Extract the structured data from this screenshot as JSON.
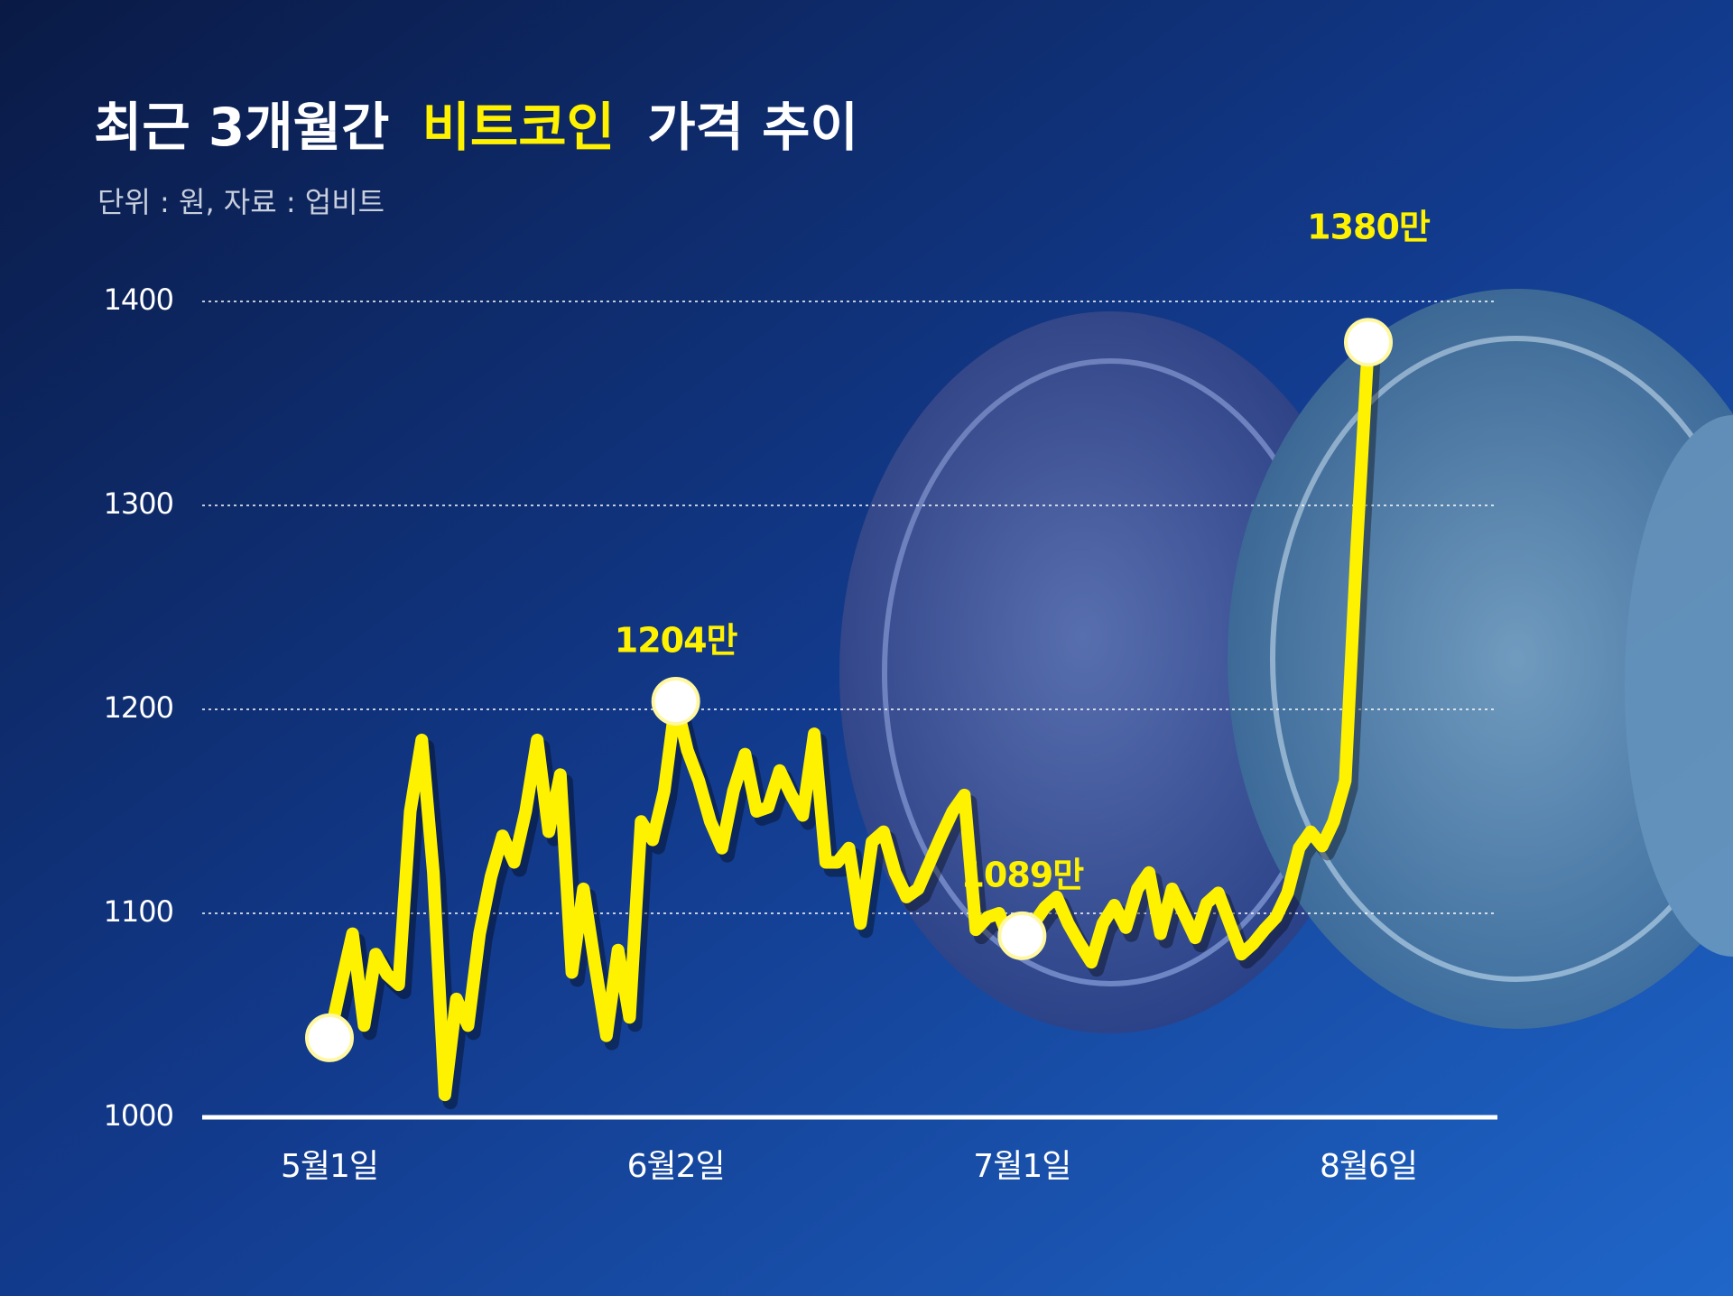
{
  "chart_data": {
    "type": "line",
    "title_parts": [
      "최근 3개월간",
      "비트코인",
      "가격 추이"
    ],
    "subtitle": "단위 : 원, 자료 : 업비트",
    "categories": [
      "5월1일",
      null,
      null,
      null,
      null,
      null,
      null,
      null,
      null,
      null,
      null,
      null,
      null,
      null,
      null,
      null,
      null,
      null,
      null,
      null,
      null,
      null,
      null,
      null,
      null,
      null,
      null,
      null,
      null,
      null,
      "6월2일",
      null,
      null,
      null,
      null,
      null,
      null,
      null,
      null,
      null,
      null,
      null,
      null,
      null,
      null,
      null,
      null,
      null,
      null,
      null,
      null,
      null,
      null,
      null,
      null,
      null,
      null,
      null,
      null,
      null,
      "7월1일",
      null,
      null,
      null,
      null,
      null,
      null,
      null,
      null,
      null,
      null,
      null,
      null,
      null,
      null,
      null,
      null,
      null,
      null,
      null,
      null,
      null,
      null,
      null,
      null,
      null,
      null,
      null,
      null,
      null,
      "8월6일"
    ],
    "values": [
      1039,
      1065,
      1090,
      1045,
      1080,
      1070,
      1065,
      1150,
      1185,
      1120,
      1011,
      1058,
      1045,
      1090,
      1118,
      1138,
      1125,
      1150,
      1185,
      1140,
      1168,
      1071,
      1112,
      1075,
      1040,
      1082,
      1049,
      1145,
      1136,
      1160,
      1204,
      1180,
      1165,
      1145,
      1132,
      1160,
      1178,
      1150,
      1152,
      1170,
      1158,
      1148,
      1188,
      1125,
      1125,
      1132,
      1095,
      1135,
      1140,
      1120,
      1108,
      1112,
      1125,
      1138,
      1150,
      1158,
      1092,
      1098,
      1100,
      1085,
      1089,
      1095,
      1103,
      1108,
      1095,
      1085,
      1076,
      1095,
      1104,
      1093,
      1112,
      1120,
      1090,
      1112,
      1100,
      1088,
      1105,
      1110,
      1095,
      1080,
      1085,
      1092,
      1098,
      1110,
      1132,
      1140,
      1133,
      1145,
      1165,
      1280,
      1380
    ],
    "value_labels": [
      null,
      null,
      null,
      null,
      null,
      null,
      null,
      null,
      null,
      null,
      null,
      null,
      null,
      null,
      null,
      null,
      null,
      null,
      null,
      null,
      null,
      null,
      null,
      null,
      null,
      null,
      null,
      null,
      null,
      null,
      "1204만",
      null,
      null,
      null,
      null,
      null,
      null,
      null,
      null,
      null,
      null,
      null,
      null,
      null,
      null,
      null,
      null,
      null,
      null,
      null,
      null,
      null,
      null,
      null,
      null,
      null,
      null,
      null,
      null,
      null,
      "1089만",
      null,
      null,
      null,
      null,
      null,
      null,
      null,
      null,
      null,
      null,
      null,
      null,
      null,
      null,
      null,
      null,
      null,
      null,
      null,
      null,
      null,
      null,
      null,
      null,
      null,
      null,
      null,
      null,
      null,
      "1380만"
    ],
    "color": "#fff200",
    "ylim": [
      1000,
      1400
    ],
    "yticks": [
      1000,
      1100,
      1200,
      1300,
      1400
    ],
    "grid": true
  }
}
